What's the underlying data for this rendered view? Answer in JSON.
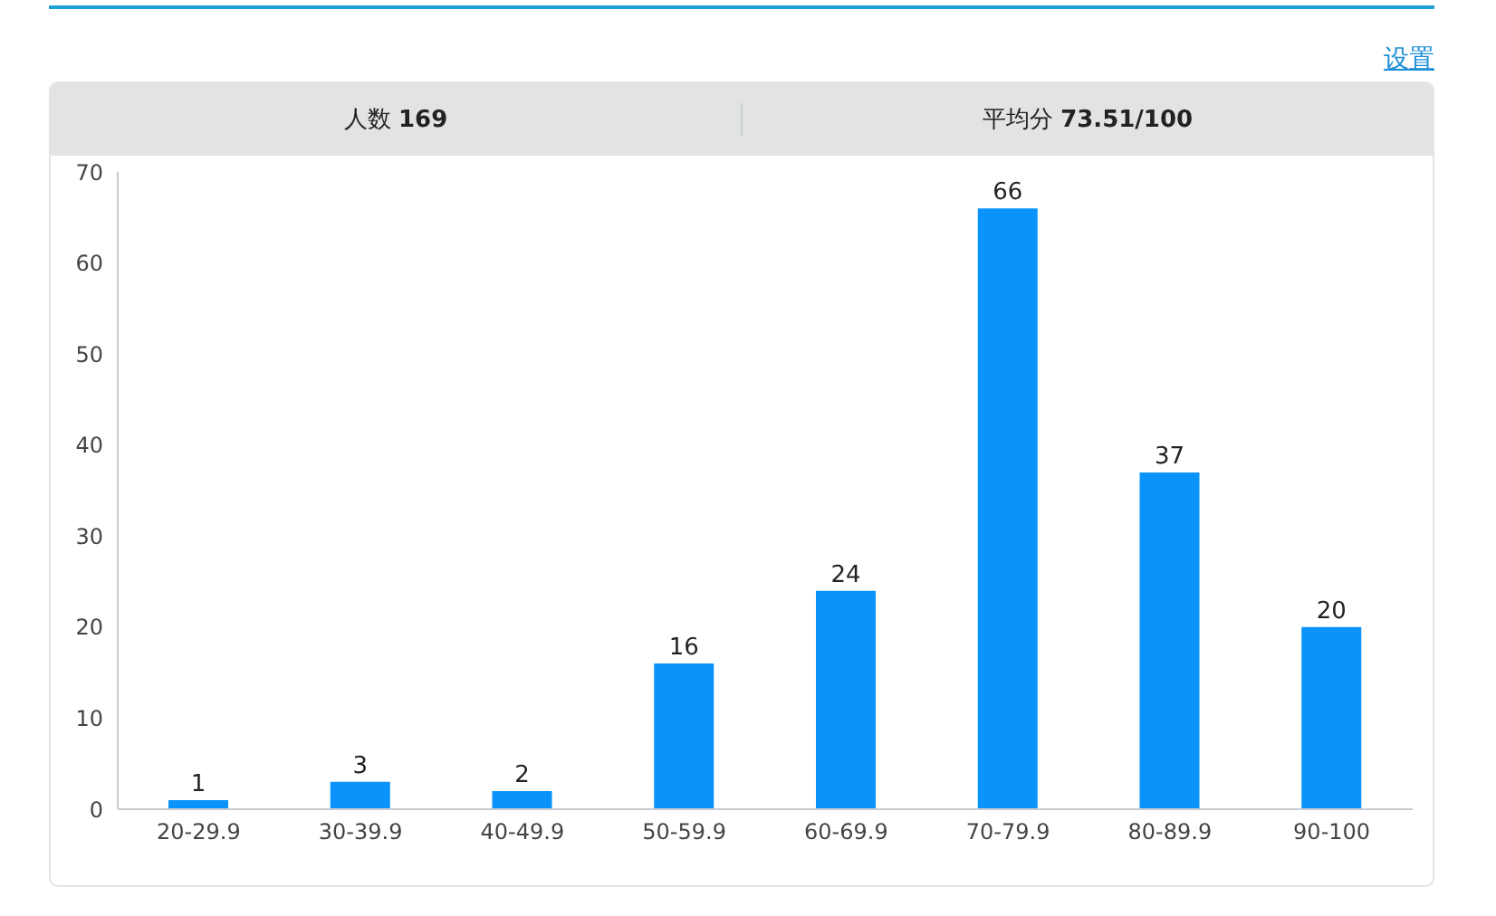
{
  "chart_data": {
    "type": "bar",
    "categories": [
      "20-29.9",
      "30-39.9",
      "40-49.9",
      "50-59.9",
      "60-69.9",
      "70-79.9",
      "80-89.9",
      "90-100"
    ],
    "values": [
      1,
      3,
      2,
      16,
      24,
      66,
      37,
      20
    ],
    "color": "#0a93fb",
    "ylim": [
      0,
      70
    ],
    "yticks": [
      0,
      10,
      20,
      30,
      40,
      50,
      60,
      70
    ],
    "grid": false,
    "legend": false,
    "data_labels": true,
    "annotations": [
      "设置",
      "人数 169",
      "平均分 73.51/100"
    ]
  }
}
